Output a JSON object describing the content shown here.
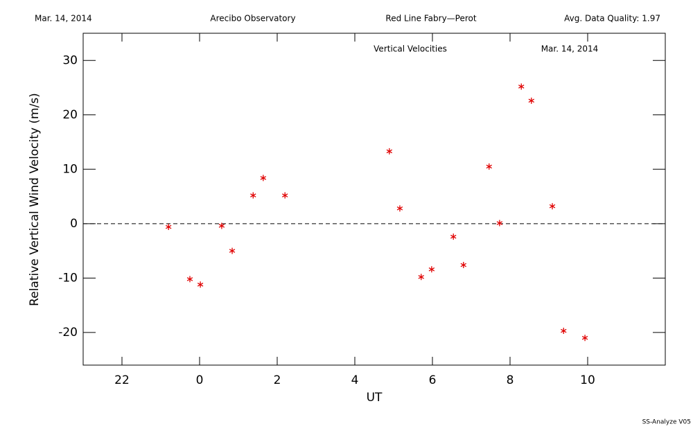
{
  "header": {
    "date": "Mar. 14, 2014",
    "site": "Arecibo Observatory",
    "instrument": "Red Line Fabry—Perot",
    "quality": "Avg. Data Quality: 1.97"
  },
  "footer": "SS-Analyze V05",
  "chart_data": {
    "type": "scatter",
    "title": "Vertical Velocities",
    "subtitle": "Mar. 14, 2014",
    "x_label": "UT",
    "y_label": "Relative Vertical Wind Velocity (m/s)",
    "color": "#e00000",
    "marker": "asterisk",
    "x": [
      -0.8,
      -0.25,
      0.02,
      0.57,
      0.84,
      1.38,
      1.64,
      2.2,
      4.89,
      5.16,
      5.71,
      5.98,
      6.54,
      6.8,
      7.46,
      7.73,
      8.29,
      8.55,
      9.09,
      9.38,
      9.93
    ],
    "values": [
      -0.6,
      -10.2,
      -11.2,
      -0.4,
      -5.0,
      5.2,
      8.4,
      5.2,
      13.3,
      2.8,
      -9.8,
      -8.4,
      -2.4,
      -7.6,
      10.5,
      0.1,
      25.2,
      22.6,
      3.2,
      -19.7,
      -21.0
    ],
    "xlim": [
      -3,
      12
    ],
    "xticks": [
      {
        "value": -2,
        "label": "22"
      },
      0,
      2,
      4,
      6,
      8,
      10
    ],
    "ylim": [
      -26,
      35
    ],
    "yticks": [
      -20,
      -10,
      0,
      10,
      20,
      30
    ],
    "hline": 0
  }
}
